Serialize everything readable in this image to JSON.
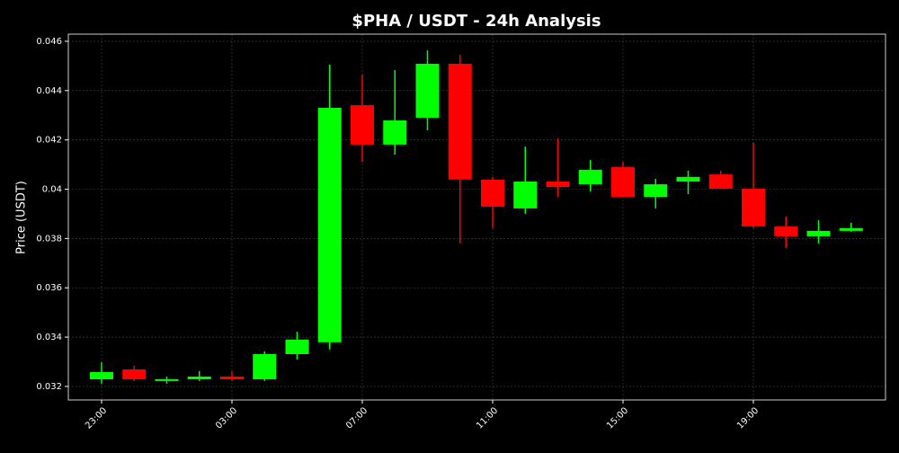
{
  "chart_data": {
    "type": "candlestick",
    "title": "$PHA / USDT - 24h Analysis",
    "y_label": "Price (USDT)",
    "categories": [
      "23:00",
      null,
      null,
      null,
      "03:00",
      null,
      null,
      null,
      "07:00",
      null,
      null,
      null,
      "11:00",
      null,
      null,
      null,
      "15:00",
      null,
      null,
      null,
      "19:00",
      null,
      null,
      null
    ],
    "open": [
      0.03229,
      0.03269,
      0.03222,
      0.03229,
      0.0324,
      0.03229,
      0.03331,
      0.03379,
      0.04341,
      0.04181,
      0.0429,
      0.04509,
      0.04039,
      0.03922,
      0.04031,
      0.0402,
      0.0409,
      0.03969,
      0.04031,
      0.0406,
      0.04002,
      0.03849,
      0.03809,
      0.03831
    ],
    "high": [
      0.03298,
      0.03284,
      0.0324,
      0.03262,
      0.03262,
      0.03342,
      0.03422,
      0.04505,
      0.04465,
      0.04483,
      0.04563,
      0.04545,
      0.0405,
      0.04173,
      0.04206,
      0.04119,
      0.04111,
      0.04042,
      0.04075,
      0.04075,
      0.04188,
      0.03889,
      0.03874,
      0.03864
    ],
    "low": [
      0.03211,
      0.03222,
      0.03211,
      0.03222,
      0.03222,
      0.03222,
      0.03309,
      0.0335,
      0.04111,
      0.0414,
      0.04239,
      0.0378,
      0.03842,
      0.039,
      0.03969,
      0.03991,
      0.03969,
      0.03922,
      0.0398,
      0.04002,
      0.03842,
      0.03761,
      0.0378,
      0.03827
    ],
    "close": [
      0.03258,
      0.03229,
      0.03229,
      0.0324,
      0.03229,
      0.03331,
      0.0339,
      0.0433,
      0.04181,
      0.04279,
      0.04509,
      0.04039,
      0.03929,
      0.04031,
      0.04009,
      0.04079,
      0.03969,
      0.0402,
      0.0405,
      0.04002,
      0.03849,
      0.03809,
      0.03831,
      0.03842
    ],
    "up_color": "#00ff00",
    "down_color": "#ff0000",
    "ylim": [
      0.03145,
      0.04629
    ],
    "yticks": [
      0.032,
      0.034,
      0.036,
      0.038,
      0.04,
      0.042,
      0.044,
      0.046
    ],
    "grid": true
  }
}
